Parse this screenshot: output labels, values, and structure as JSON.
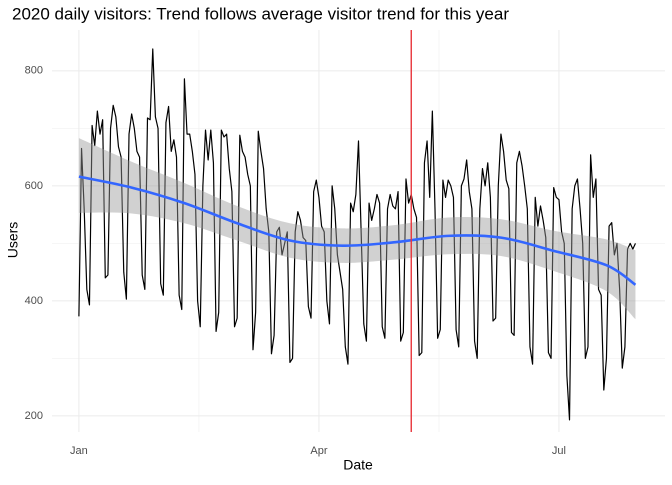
{
  "chart_data": {
    "type": "line",
    "title": "2020 daily visitors: Trend follows average visitor trend for this year",
    "x_label": "Date",
    "y_label": "Users",
    "x": [
      0,
      1,
      2,
      3,
      4,
      5,
      6,
      7,
      8,
      9,
      10,
      11,
      12,
      13,
      14,
      15,
      16,
      17,
      18,
      19,
      20,
      21,
      22,
      23,
      24,
      25,
      26,
      27,
      28,
      29,
      30,
      31,
      32,
      33,
      34,
      35,
      36,
      37,
      38,
      39,
      40,
      41,
      42,
      43,
      44,
      45,
      46,
      47,
      48,
      49,
      50,
      51,
      52,
      53,
      54,
      55,
      56,
      57,
      58,
      59,
      60,
      61,
      62,
      63,
      64,
      65,
      66,
      67,
      68,
      69,
      70,
      71,
      72,
      73,
      74,
      75,
      76,
      77,
      78,
      79,
      80,
      81,
      82,
      83,
      84,
      85,
      86,
      87,
      88,
      89,
      90,
      91,
      92,
      93,
      94,
      95,
      96,
      97,
      98,
      99,
      100,
      101,
      102,
      103,
      104,
      105,
      106,
      107,
      108,
      109,
      110,
      111,
      112,
      113,
      114,
      115,
      116,
      117,
      118,
      119,
      120,
      121,
      122,
      123,
      124,
      125,
      126,
      127,
      128,
      129,
      130,
      131,
      132,
      133,
      134,
      135,
      136,
      137,
      138,
      139,
      140,
      141,
      142,
      143,
      144,
      145,
      146,
      147,
      148,
      149,
      150,
      151,
      152,
      153,
      154,
      155,
      156,
      157,
      158,
      159,
      160,
      161,
      162,
      163,
      164,
      165,
      166,
      167,
      168,
      169,
      170,
      171,
      172,
      173,
      174,
      175,
      176,
      177,
      178,
      179,
      180,
      181,
      182,
      183,
      184,
      185,
      186,
      187,
      188,
      189,
      190,
      191,
      192,
      193,
      194,
      195,
      196,
      197,
      198,
      199,
      200,
      201,
      202,
      203,
      204,
      205,
      206,
      207,
      208,
      209,
      210,
      211
    ],
    "series": [
      {
        "color": "#000000",
        "values": [
          373,
          665,
          560,
          420,
          393,
          705,
          670,
          730,
          690,
          715,
          440,
          445,
          700,
          740,
          720,
          668,
          650,
          450,
          403,
          690,
          725,
          700,
          660,
          650,
          445,
          420,
          718,
          715,
          838,
          720,
          700,
          430,
          410,
          710,
          738,
          660,
          680,
          650,
          410,
          385,
          786,
          690,
          690,
          660,
          620,
          400,
          355,
          600,
          697,
          645,
          697,
          640,
          347,
          380,
          697,
          685,
          690,
          630,
          590,
          355,
          370,
          688,
          660,
          650,
          620,
          600,
          315,
          380,
          695,
          660,
          630,
          560,
          520,
          308,
          340,
          520,
          528,
          480,
          500,
          520,
          293,
          300,
          520,
          555,
          540,
          510,
          505,
          390,
          370,
          590,
          610,
          580,
          530,
          520,
          400,
          360,
          600,
          560,
          480,
          450,
          420,
          320,
          290,
          570,
          555,
          585,
          678,
          520,
          360,
          330,
          570,
          540,
          560,
          585,
          570,
          355,
          335,
          560,
          585,
          565,
          560,
          590,
          330,
          345,
          612,
          570,
          585,
          560,
          545,
          305,
          310,
          640,
          678,
          580,
          730,
          560,
          335,
          350,
          610,
          580,
          610,
          600,
          580,
          350,
          320,
          600,
          612,
          645,
          590,
          560,
          330,
          300,
          560,
          630,
          600,
          640,
          580,
          365,
          370,
          600,
          690,
          660,
          610,
          595,
          345,
          340,
          640,
          660,
          635,
          600,
          560,
          320,
          290,
          580,
          530,
          565,
          540,
          510,
          310,
          300,
          597,
          580,
          576,
          520,
          500,
          270,
          193,
          560,
          600,
          612,
          560,
          500,
          300,
          320,
          654,
          580,
          612,
          420,
          410,
          245,
          300,
          530,
          536,
          480,
          500,
          420,
          283,
          320,
          490,
          500,
          490,
          500
        ]
      }
    ],
    "smooth": {
      "color": "#3366ff",
      "band_color": "#999999",
      "x": [
        0,
        20,
        40,
        60,
        80,
        100,
        120,
        140,
        160,
        180,
        200,
        211
      ],
      "values": [
        616,
        597,
        570,
        535,
        505,
        496,
        502,
        513,
        510,
        487,
        462,
        428
      ],
      "lower": [
        553,
        552,
        535,
        505,
        475,
        466,
        472,
        481,
        478,
        452,
        417,
        368
      ],
      "upper": [
        683,
        642,
        605,
        565,
        535,
        526,
        532,
        545,
        542,
        522,
        507,
        488
      ]
    },
    "vline": {
      "value": 126,
      "color": "#e8353b"
    },
    "xlim": [
      -10.2,
      222.2
    ],
    "xticks": [
      {
        "value": 0,
        "label": "Jan"
      },
      {
        "value": 91,
        "label": "Apr"
      },
      {
        "value": 182,
        "label": "Jul"
      }
    ],
    "x_minor_ticks": [
      45.5,
      136.5
    ],
    "ylim": [
      172,
      871
    ],
    "yticks": [
      200,
      400,
      600,
      800
    ],
    "y_minor_ticks": [
      300,
      500,
      700
    ],
    "grid": true
  }
}
